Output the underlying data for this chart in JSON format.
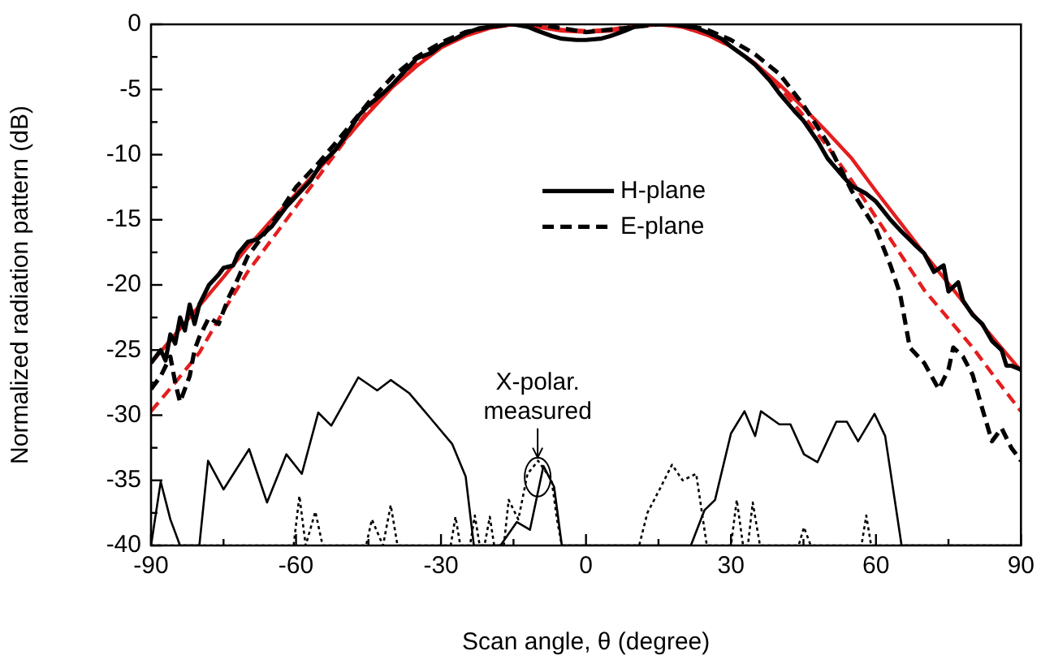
{
  "chart_data": {
    "type": "line",
    "xlabel": "Scan angle, θ (degree)",
    "ylabel": "Normalized radiation pattern (dB)",
    "xlim": [
      -90,
      90
    ],
    "xticks": [
      -90,
      -60,
      -30,
      0,
      30,
      60,
      90
    ],
    "ylim": [
      -40,
      0
    ],
    "yticks": [
      -40,
      -35,
      -30,
      -25,
      -20,
      -15,
      -10,
      -5,
      0
    ],
    "grid": false,
    "legend": "center",
    "marker": "none",
    "annotations": [
      {
        "text": "X-polar.\nmeasured",
        "x": -10,
        "y": -33.5
      }
    ],
    "series": [
      {
        "name": "H-plane",
        "color": "#000000",
        "line_style": "solid",
        "x": [
          -90,
          -88,
          -87,
          -86,
          -85,
          -84,
          -83,
          -82,
          -81,
          -80,
          -78,
          -76,
          -75,
          -73,
          -72,
          -70,
          -68,
          -65,
          -62,
          -60,
          -57,
          -55,
          -52,
          -50,
          -47,
          -45,
          -42,
          -40,
          -37,
          -35,
          -32,
          -30,
          -27,
          -25,
          -22,
          -20,
          -17,
          -15,
          -12,
          -10,
          -7,
          -5,
          -2,
          0,
          3,
          5,
          8,
          10,
          13,
          15,
          18,
          20,
          23,
          25,
          28,
          30,
          33,
          35,
          38,
          40,
          43,
          45,
          48,
          50,
          53,
          55,
          58,
          60,
          63,
          65,
          68,
          70,
          72,
          74,
          75,
          77,
          78,
          80,
          82,
          84,
          86,
          87,
          88,
          90
        ],
        "values": [
          -26,
          -25,
          -25.8,
          -23.8,
          -24.5,
          -22.5,
          -23.5,
          -21.5,
          -23,
          -21.5,
          -20,
          -19.2,
          -18.7,
          -18.5,
          -17.6,
          -16.7,
          -16.5,
          -15.5,
          -14,
          -13.2,
          -12,
          -10.8,
          -9.7,
          -8.7,
          -7,
          -6.2,
          -5.3,
          -4.6,
          -3.4,
          -2.6,
          -2.2,
          -1.6,
          -1.1,
          -0.7,
          -0.3,
          -0.2,
          0,
          0,
          -0.2,
          -0.5,
          -0.9,
          -1.1,
          -1.2,
          -1.2,
          -1.1,
          -0.9,
          -0.5,
          -0.2,
          0,
          0,
          0,
          -0.1,
          -0.3,
          -0.6,
          -1.1,
          -1.7,
          -2.5,
          -3.1,
          -4.3,
          -5.3,
          -6.6,
          -7.4,
          -9,
          -10.3,
          -11.6,
          -12.4,
          -13,
          -13.6,
          -15,
          -15.8,
          -16.9,
          -17.6,
          -19,
          -18.5,
          -20.5,
          -19.8,
          -21.2,
          -22.3,
          -23,
          -24.3,
          -25,
          -26.2,
          -26.2,
          -26.5
        ]
      },
      {
        "name": "E-plane",
        "color": "#000000",
        "line_style": "dashed",
        "x": [
          -90,
          -88,
          -86,
          -85,
          -84,
          -82,
          -81,
          -80,
          -78,
          -76,
          -74,
          -72,
          -70,
          -65,
          -60,
          -55,
          -50,
          -45,
          -40,
          -35,
          -30,
          -25,
          -20,
          -15,
          -10,
          -5,
          0,
          5,
          10,
          15,
          20,
          25,
          30,
          35,
          40,
          45,
          50,
          55,
          60,
          63,
          65,
          67,
          70,
          73,
          75,
          76,
          78,
          80,
          82,
          84,
          86,
          88,
          90
        ],
        "values": [
          -28,
          -27,
          -25.5,
          -27.5,
          -29,
          -27,
          -25,
          -24,
          -22.5,
          -23,
          -21,
          -19.5,
          -17.8,
          -15.3,
          -12.5,
          -10.5,
          -8.3,
          -6,
          -4,
          -2.5,
          -1.4,
          -0.6,
          -0.2,
          0,
          0,
          -0.3,
          -0.6,
          -0.4,
          -0.2,
          0,
          0,
          -0.4,
          -1.2,
          -2.3,
          -3.8,
          -6.2,
          -9.1,
          -12.8,
          -15.7,
          -18.5,
          -20.7,
          -24.8,
          -26,
          -28,
          -26.5,
          -24.8,
          -25.5,
          -26.9,
          -29.5,
          -32,
          -31,
          -32.5,
          -33.5
        ]
      },
      {
        "color": "#e41e1e",
        "line_style": "solid",
        "x": [
          -90,
          -85,
          -80,
          -75,
          -70,
          -65,
          -60,
          -55,
          -50,
          -45,
          -40,
          -35,
          -30,
          -25,
          -20,
          -15,
          -10,
          -5,
          0,
          5,
          10,
          15,
          20,
          25,
          30,
          35,
          40,
          45,
          50,
          55,
          60,
          65,
          70,
          75,
          80,
          85,
          90
        ],
        "values": [
          -26,
          -23.8,
          -21.6,
          -19.4,
          -17.1,
          -15,
          -13,
          -11,
          -8.9,
          -6.8,
          -4.8,
          -3.2,
          -1.8,
          -0.9,
          -0.3,
          0,
          -0.2,
          -0.5,
          -0.6,
          -0.5,
          -0.2,
          0,
          -0.2,
          -0.8,
          -1.7,
          -3,
          -4.6,
          -6.4,
          -8.3,
          -10.3,
          -12.8,
          -15.2,
          -17.6,
          -19.9,
          -22.2,
          -24.4,
          -26.6
        ]
      },
      {
        "color": "#e41e1e",
        "line_style": "dashed",
        "x": [
          -90,
          -85,
          -80,
          -75,
          -70,
          -65,
          -60,
          -55,
          -50,
          -45,
          -40,
          -35,
          -30,
          -25,
          -20,
          -15,
          -10,
          -5,
          0,
          5,
          10,
          15,
          20,
          25,
          30,
          35,
          40,
          45,
          50,
          55,
          60,
          65,
          70,
          75,
          80,
          85,
          90
        ],
        "values": [
          -29.7,
          -27.5,
          -25.2,
          -22,
          -19,
          -16.5,
          -14,
          -11.5,
          -9,
          -6.6,
          -4.5,
          -2.9,
          -1.6,
          -0.7,
          -0.2,
          0,
          -0.1,
          -0.4,
          -0.5,
          -0.4,
          -0.1,
          0,
          -0.2,
          -0.8,
          -1.7,
          -3,
          -4.8,
          -7,
          -9.4,
          -12,
          -14.8,
          -17.6,
          -20.4,
          -22.6,
          -24.8,
          -27.3,
          -29.7
        ]
      },
      {
        "color": "#000000",
        "line_style": "solid",
        "x": [
          -90,
          -88,
          -86,
          -84,
          -80,
          -78.2,
          -75,
          -69.7,
          -66,
          -62,
          -58.8,
          -55.4,
          -52.7,
          -47.1,
          -43.2,
          -40.4,
          -36.6,
          -32.7,
          -27.7,
          -24.9,
          -23.2,
          -17.7,
          -14.3,
          -11.6,
          -8.8,
          -6.6,
          -5,
          21.7,
          24.5,
          26.7,
          30,
          32.8,
          35,
          36.2,
          40,
          42.3,
          45.1,
          47.9,
          51.8,
          54,
          56.3,
          59.7,
          61.9,
          65.3,
          90
        ],
        "values": [
          -40,
          -35.1,
          -38,
          -40,
          -40,
          -33.5,
          -35.7,
          -32.6,
          -36.7,
          -33,
          -34.5,
          -29.8,
          -30.8,
          -27.1,
          -28.1,
          -27.3,
          -28.3,
          -30,
          -32.2,
          -34.7,
          -40,
          -40,
          -38.2,
          -38.8,
          -33.9,
          -35.5,
          -40,
          -40,
          -37.3,
          -36.5,
          -31.4,
          -29.7,
          -31.6,
          -29.7,
          -30.7,
          -30.7,
          -33,
          -33.6,
          -30.5,
          -30.5,
          -32,
          -29.9,
          -31.6,
          -40,
          -40
        ]
      },
      {
        "color": "#000000",
        "line_style": "dotted",
        "x": [
          -90,
          -60.5,
          -59.3,
          -58,
          -56,
          -54.5,
          -45.5,
          -44.3,
          -42,
          -40.4,
          -39,
          -28,
          -27,
          -26,
          -24,
          -23,
          -22,
          -21,
          -19.9,
          -19,
          -17,
          -16,
          -14,
          -12.1,
          -9.9,
          -7.1,
          -6,
          -5,
          11,
          12.7,
          15.5,
          17.8,
          20,
          22.8,
          25,
          30,
          31.2,
          32.5,
          33.5,
          34.5,
          36,
          44,
          45.1,
          46.5,
          57,
          58,
          59,
          67.5,
          90
        ],
        "values": [
          -40,
          -40,
          -36.2,
          -40,
          -37.4,
          -40,
          -40,
          -38,
          -40,
          -36.9,
          -40,
          -40,
          -37.8,
          -40,
          -40,
          -37.7,
          -40,
          -40,
          -37.8,
          -40,
          -40,
          -36.5,
          -38,
          -34.5,
          -33.5,
          -35,
          -38,
          -40,
          -40,
          -37.5,
          -35.5,
          -33.8,
          -35,
          -34.5,
          -40,
          -40,
          -36.5,
          -40,
          -40,
          -36.7,
          -40,
          -40,
          -38.6,
          -40,
          -40,
          -37.7,
          -40,
          -40,
          -40
        ]
      }
    ]
  }
}
